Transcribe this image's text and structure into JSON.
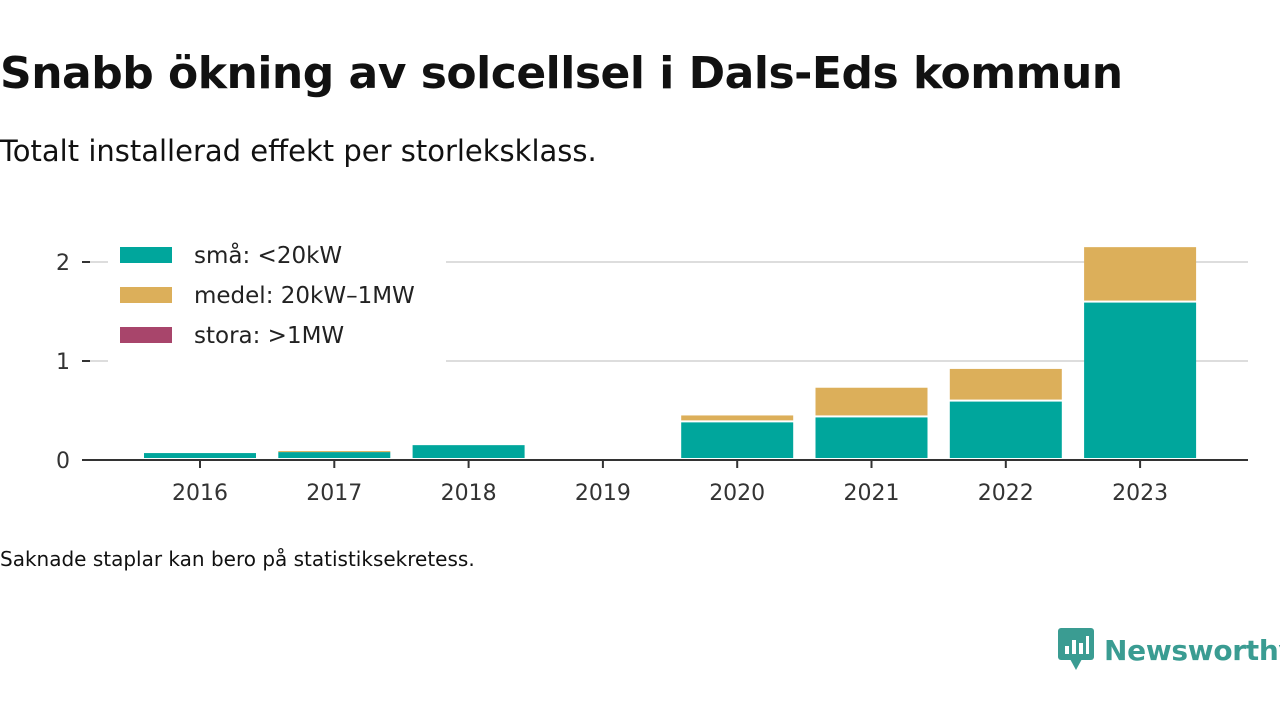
{
  "title": "Snabb ökning av solcellsel i Dals-Eds kommun",
  "subtitle": "Totalt installerad effekt per storleksklass.",
  "note": "Saknade staplar kan bero på statistiksekretess.",
  "brand": {
    "name": "Newsworthy",
    "color": "#3a9c92",
    "logo_icon": "bar-chart-speech-bubble-icon"
  },
  "chart_data": {
    "type": "bar",
    "stacked": true,
    "categories": [
      "2016",
      "2017",
      "2018",
      "2019",
      "2020",
      "2021",
      "2022",
      "2023"
    ],
    "series": [
      {
        "name": "små: <20kW",
        "color": "#00a69c",
        "values": [
          0.07,
          0.08,
          0.15,
          0,
          0.38,
          0.43,
          0.59,
          1.59
        ]
      },
      {
        "name": "medel: 20kW–1MW",
        "color": "#dcaf5a",
        "values": [
          0,
          0.01,
          0,
          0,
          0.07,
          0.3,
          0.33,
          0.56
        ]
      },
      {
        "name": "stora: >1MW",
        "color": "#a8456b",
        "values": [
          0,
          0,
          0,
          0,
          0,
          0,
          0,
          0
        ]
      }
    ],
    "yticks": [
      "0",
      "1",
      "2"
    ],
    "ylim": [
      0,
      2.2
    ],
    "grid": true,
    "legend_position": "top-left"
  }
}
